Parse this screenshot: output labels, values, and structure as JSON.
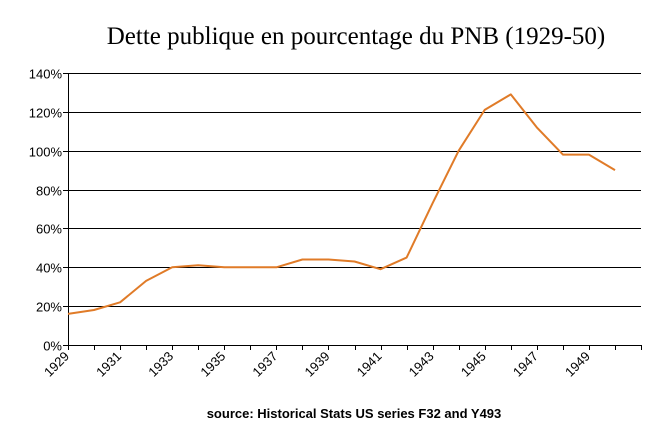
{
  "chart_data": {
    "type": "line",
    "title": "Dette publique en pourcentage du PNB (1929-50)",
    "source": "source: Historical Stats US  series F32 and Y493",
    "xlabel": "",
    "ylabel": "",
    "x": [
      1929,
      1930,
      1931,
      1932,
      1933,
      1934,
      1935,
      1936,
      1937,
      1938,
      1939,
      1940,
      1941,
      1942,
      1943,
      1944,
      1945,
      1946,
      1947,
      1948,
      1949,
      1950
    ],
    "x_tick_labels": [
      "1929",
      "1931",
      "1933",
      "1935",
      "1937",
      "1939",
      "1941",
      "1943",
      "1945",
      "1947",
      "1949"
    ],
    "y_tick_labels": [
      "0%",
      "20%",
      "40%",
      "60%",
      "80%",
      "100%",
      "120%",
      "140%"
    ],
    "ylim": [
      0,
      140
    ],
    "grid": true,
    "series": [
      {
        "values": [
          16,
          18,
          22,
          33,
          40,
          41,
          40,
          40,
          40,
          44,
          44,
          43,
          39,
          45,
          73,
          100,
          121,
          129,
          112,
          98,
          98,
          90
        ],
        "color": "#E07B28"
      }
    ]
  }
}
